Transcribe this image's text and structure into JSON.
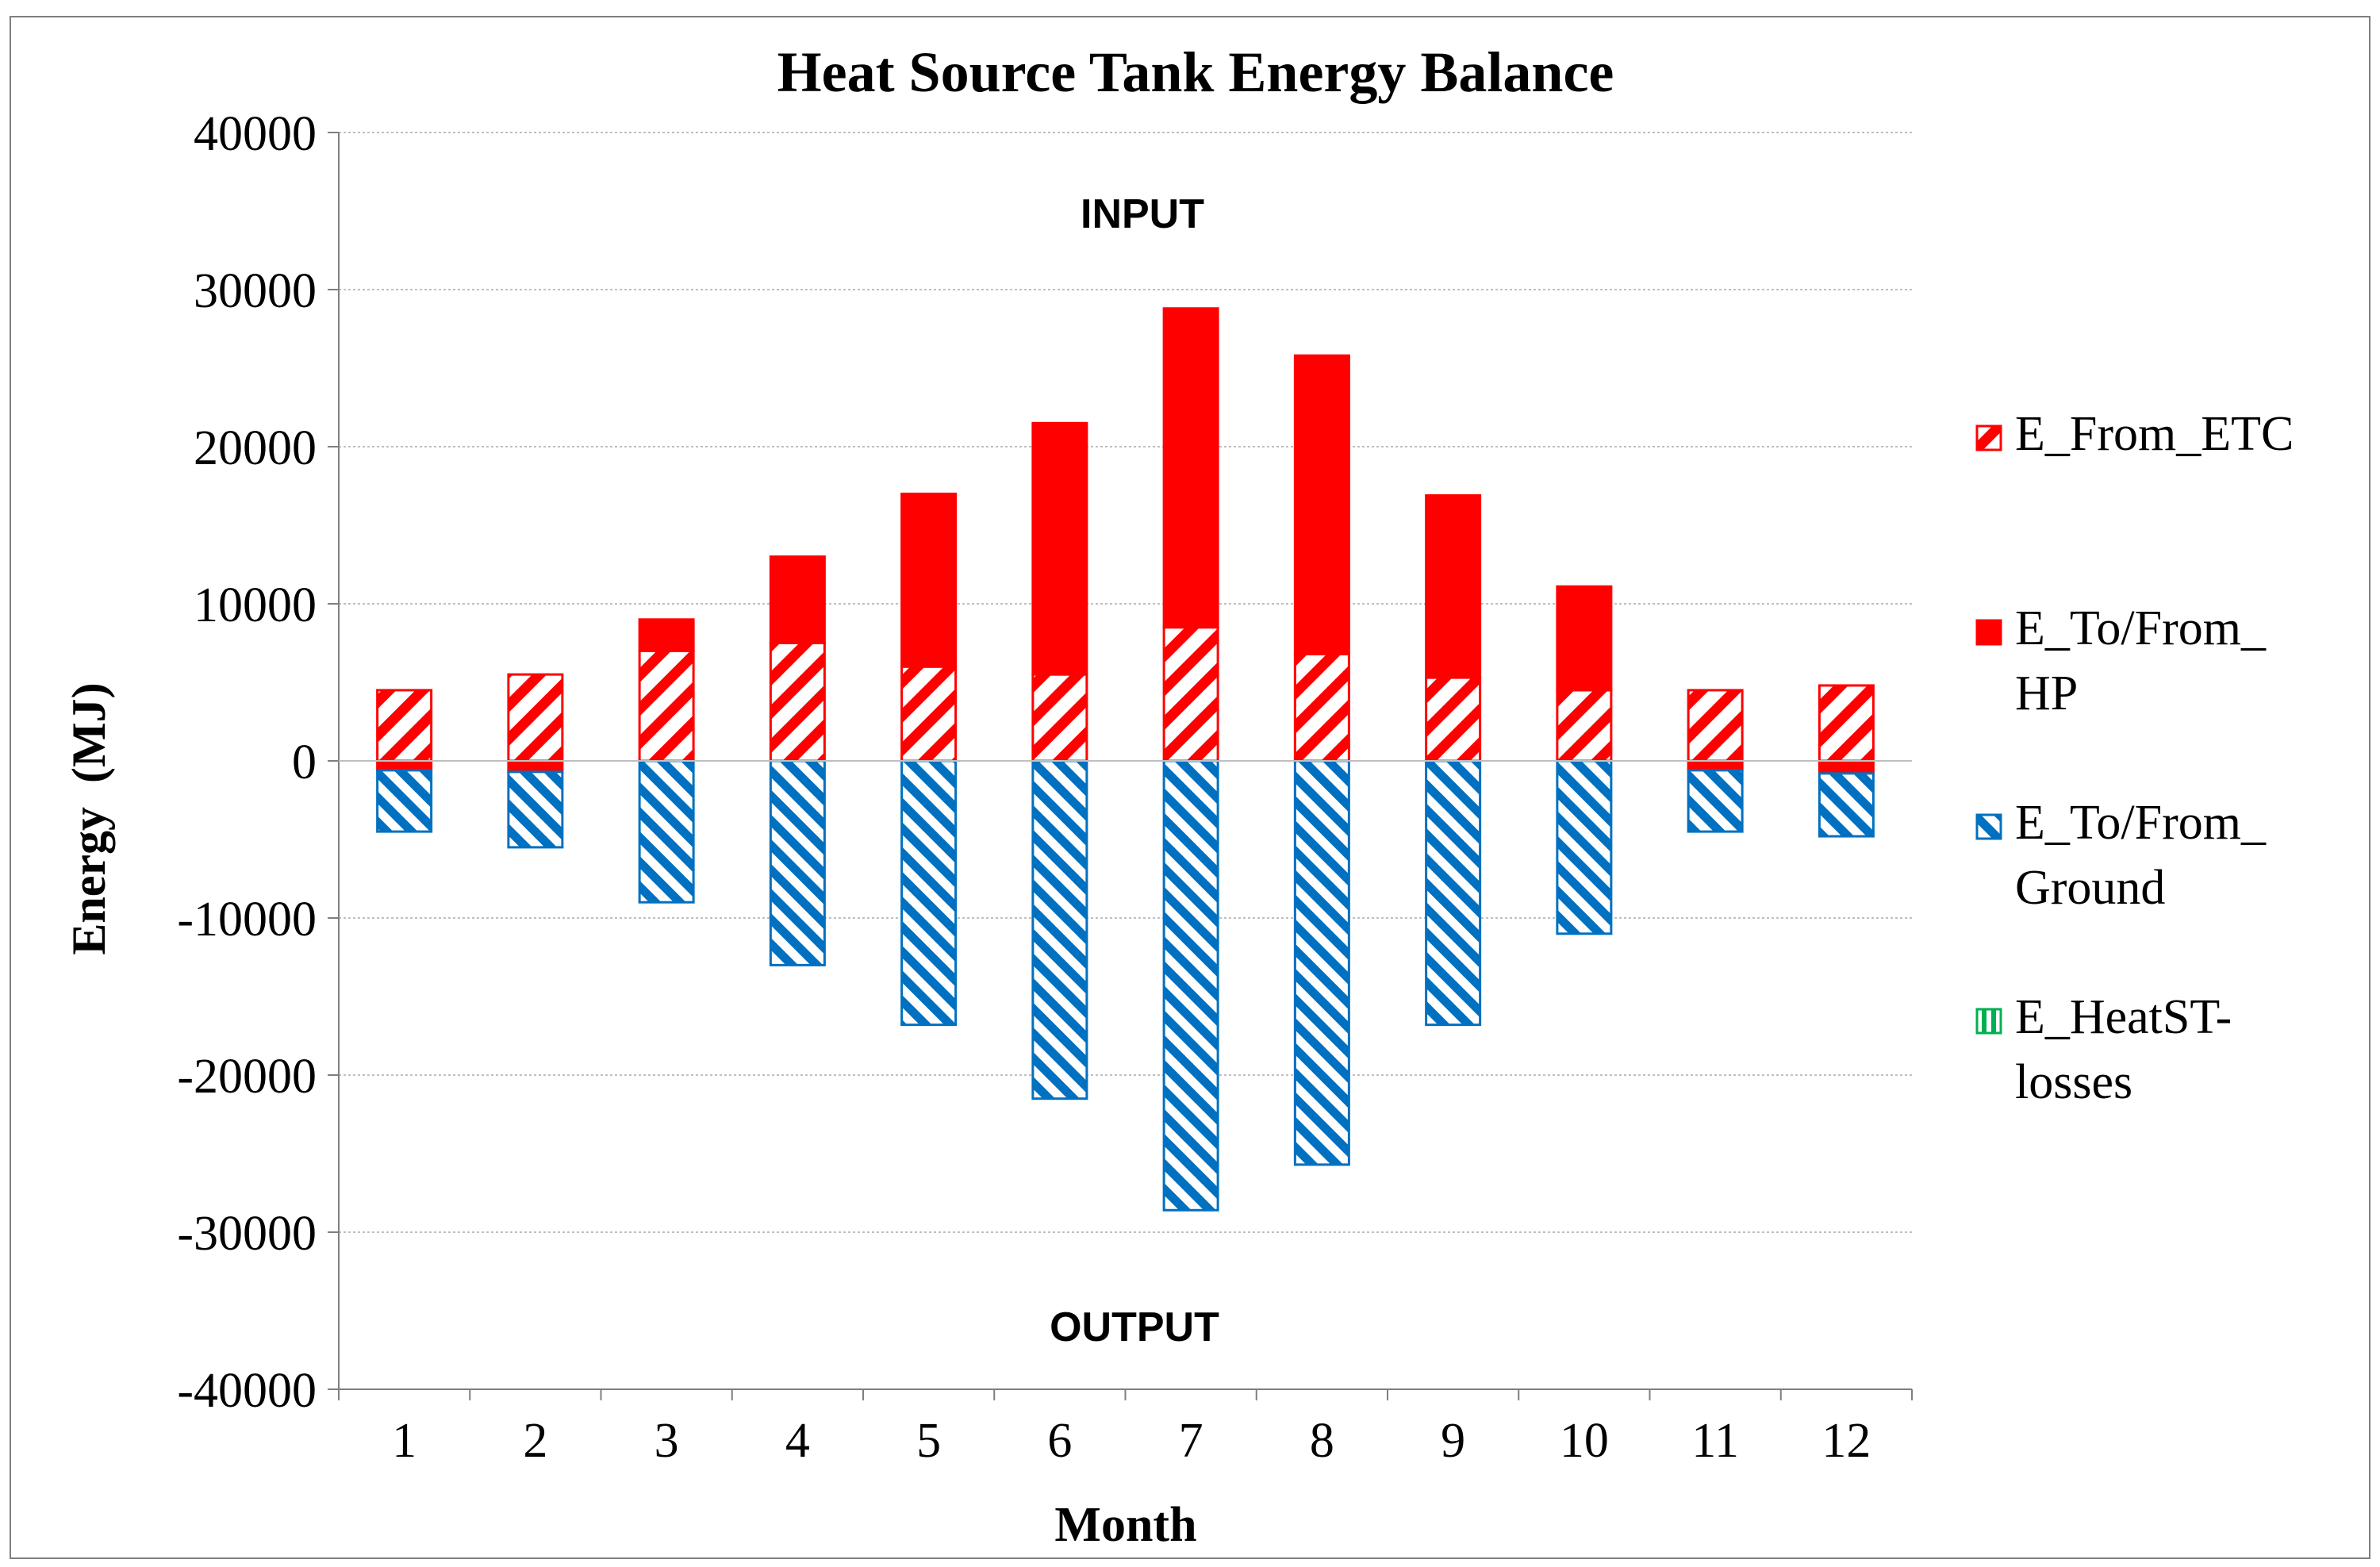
{
  "chart_data": {
    "type": "bar",
    "stacked": true,
    "title": "Heat Source Tank Energy Balance",
    "xlabel": "Month",
    "ylabel": "Energy  (MJ)",
    "ylim": [
      -40000,
      40000
    ],
    "ytick_step": 10000,
    "ytick_labels": [
      "40000",
      "30000",
      "20000",
      "10000",
      "0",
      "-10000",
      "-20000",
      "-30000",
      "-40000"
    ],
    "categories": [
      "1",
      "2",
      "3",
      "4",
      "5",
      "6",
      "7",
      "8",
      "9",
      "10",
      "11",
      "12"
    ],
    "annotations": {
      "input": "INPUT",
      "output": "OUTPUT"
    },
    "legend_position": "right",
    "series": [
      {
        "name": "E_From_ETC",
        "legend_lines": [
          "E_From_ETC"
        ],
        "color": "#ff0000",
        "pattern": "hatch-up",
        "values": [
          4500,
          5500,
          7000,
          7500,
          6000,
          5500,
          8500,
          6800,
          5300,
          4500,
          4500,
          4800
        ]
      },
      {
        "name": "E_To/From_HP",
        "legend_lines": [
          "E_To/From_",
          "HP"
        ],
        "color": "#ff0000",
        "pattern": "solid",
        "values": [
          -600,
          -700,
          2000,
          5500,
          11000,
          16000,
          20300,
          19000,
          11600,
          6600,
          -600,
          -800
        ]
      },
      {
        "name": "E_To/From_Ground",
        "legend_lines": [
          "E_To/From_",
          "Ground"
        ],
        "color": "#0070c0",
        "pattern": "hatch-down",
        "values": [
          -3900,
          -4800,
          -9000,
          -13000,
          -16800,
          -21500,
          -28600,
          -25700,
          -16800,
          -11000,
          -3900,
          -4000
        ]
      },
      {
        "name": "E_HeatST-losses",
        "legend_lines": [
          "E_HeatST-",
          "losses"
        ],
        "color": "#00b050",
        "pattern": "vertical",
        "values": [
          0,
          0,
          0,
          0,
          0,
          0,
          0,
          0,
          0,
          0,
          0,
          0
        ]
      }
    ]
  }
}
